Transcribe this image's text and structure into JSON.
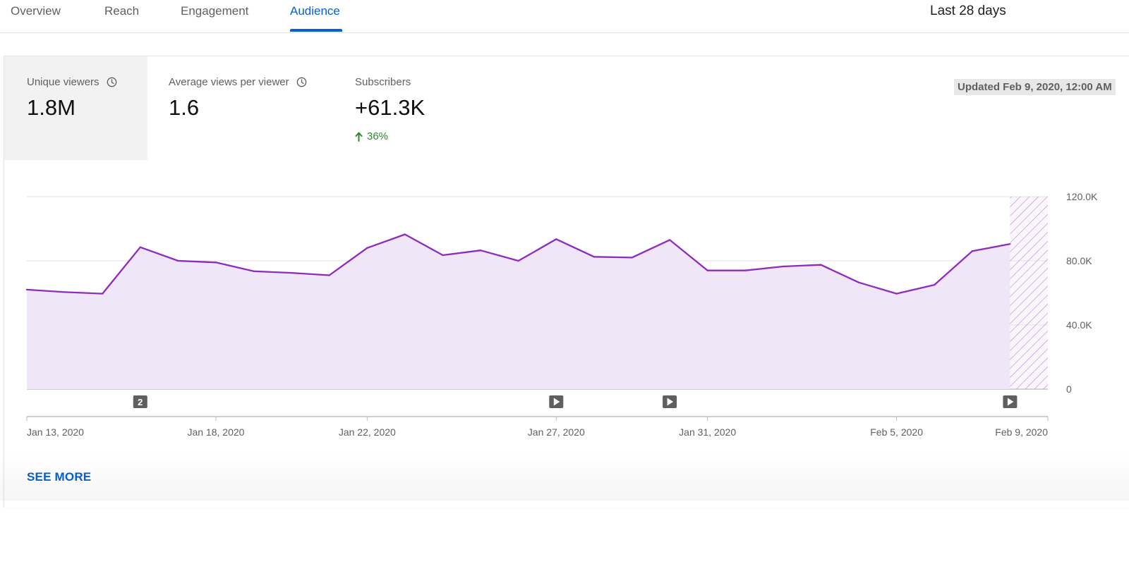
{
  "tabs": [
    {
      "label": "Overview",
      "active": false
    },
    {
      "label": "Reach",
      "active": false
    },
    {
      "label": "Engagement",
      "active": false
    },
    {
      "label": "Audience",
      "active": true
    }
  ],
  "period": "Last 28 days",
  "metrics": [
    {
      "label": "Unique viewers",
      "value": "1.8M",
      "info_icon": "clock-icon",
      "selected": true
    },
    {
      "label": "Average views per viewer",
      "value": "1.6",
      "info_icon": "clock-icon",
      "selected": false
    },
    {
      "label": "Subscribers",
      "value": "+61.3K",
      "change": "36%",
      "change_icon": "arrow-up-icon",
      "change_color": "#2f8a2f"
    }
  ],
  "updated": "Updated Feb 9, 2020, 12:00 AM",
  "see_more": "SEE MORE",
  "colors": {
    "accent": "#065fd4",
    "line": "#8e2cbd",
    "fill": "#efe6f7"
  },
  "chart_data": {
    "type": "area",
    "x": [
      "Jan 13, 2020",
      "Jan 14, 2020",
      "Jan 15, 2020",
      "Jan 16, 2020",
      "Jan 17, 2020",
      "Jan 18, 2020",
      "Jan 19, 2020",
      "Jan 20, 2020",
      "Jan 21, 2020",
      "Jan 22, 2020",
      "Jan 23, 2020",
      "Jan 24, 2020",
      "Jan 25, 2020",
      "Jan 26, 2020",
      "Jan 27, 2020",
      "Jan 28, 2020",
      "Jan 29, 2020",
      "Jan 30, 2020",
      "Jan 31, 2020",
      "Feb 1, 2020",
      "Feb 2, 2020",
      "Feb 3, 2020",
      "Feb 4, 2020",
      "Feb 5, 2020",
      "Feb 6, 2020",
      "Feb 7, 2020",
      "Feb 8, 2020"
    ],
    "values": [
      62000,
      60500,
      59500,
      88500,
      80000,
      79000,
      73500,
      72500,
      71000,
      88000,
      96500,
      83500,
      86500,
      80000,
      93500,
      82500,
      82000,
      93000,
      74000,
      74000,
      76500,
      77500,
      66500,
      59500,
      65000,
      86000,
      90500
    ],
    "x_ticks": [
      "Jan 13, 2020",
      "Jan 18, 2020",
      "Jan 22, 2020",
      "Jan 27, 2020",
      "Jan 31, 2020",
      "Feb 5, 2020",
      "Feb 9, 2020"
    ],
    "y_ticks": [
      "120.0K",
      "80.0K",
      "40.0K",
      "0"
    ],
    "ylim": [
      0,
      120000
    ],
    "incomplete_period": "Feb 8, 2020 to Feb 9, 2020",
    "markers": [
      {
        "date": "Jan 16, 2020",
        "kind": "count",
        "label": "2"
      },
      {
        "date": "Jan 27, 2020",
        "kind": "video",
        "label": ""
      },
      {
        "date": "Jan 30, 2020",
        "kind": "video",
        "label": ""
      },
      {
        "date": "Feb 8, 2020",
        "kind": "video",
        "label": ""
      }
    ],
    "grid": true
  }
}
